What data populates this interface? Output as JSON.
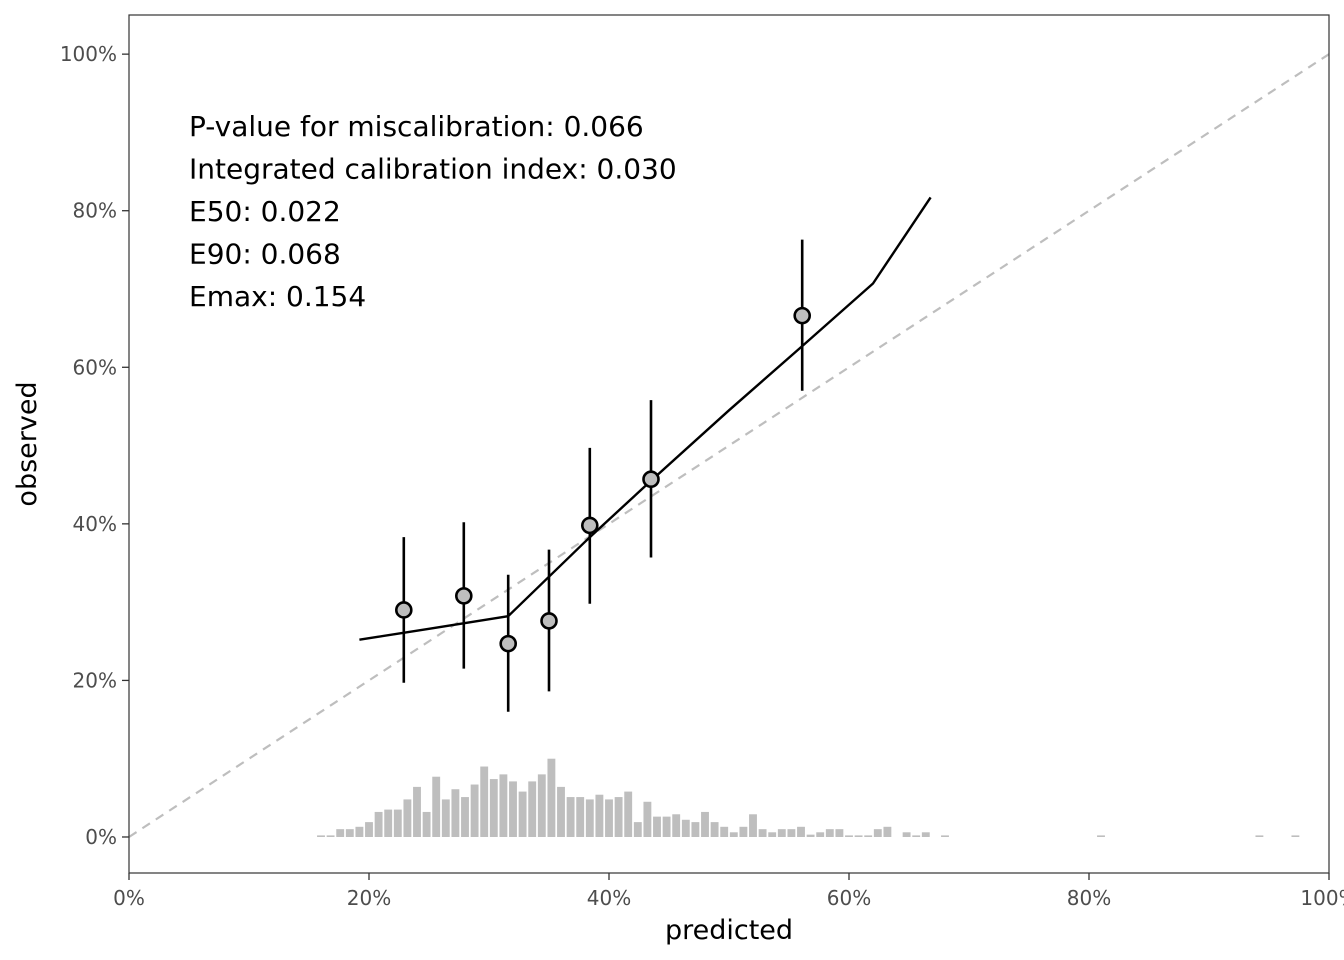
{
  "chart_data": {
    "type": "scatter",
    "title": "",
    "xlabel": "predicted",
    "ylabel": "observed",
    "xlim": [
      0,
      1
    ],
    "ylim": [
      -0.046,
      1.05
    ],
    "x_ticks": [
      0,
      0.2,
      0.4,
      0.6,
      0.8,
      1.0
    ],
    "x_tick_labels": [
      "0%",
      "20%",
      "40%",
      "60%",
      "80%",
      "100%"
    ],
    "y_ticks": [
      0,
      0.2,
      0.4,
      0.6,
      0.8,
      1.0
    ],
    "y_tick_labels": [
      "0%",
      "20%",
      "40%",
      "60%",
      "80%",
      "100%"
    ],
    "grid": false,
    "annotations": [
      "P-value for miscalibration: 0.066",
      "Integrated calibration index: 0.030",
      "E50: 0.022",
      "E90: 0.068",
      "Emax: 0.154"
    ],
    "reference_line": {
      "from": [
        0,
        0
      ],
      "to": [
        1,
        1
      ],
      "style": "dashed",
      "color": "#bebebe"
    },
    "points": [
      {
        "x": 0.229,
        "y": 0.29,
        "lower": 0.197,
        "upper": 0.383
      },
      {
        "x": 0.279,
        "y": 0.308,
        "lower": 0.215,
        "upper": 0.402
      },
      {
        "x": 0.316,
        "y": 0.247,
        "lower": 0.16,
        "upper": 0.335
      },
      {
        "x": 0.35,
        "y": 0.276,
        "lower": 0.186,
        "upper": 0.367
      },
      {
        "x": 0.384,
        "y": 0.398,
        "lower": 0.298,
        "upper": 0.497
      },
      {
        "x": 0.435,
        "y": 0.457,
        "lower": 0.357,
        "upper": 0.558
      },
      {
        "x": 0.561,
        "y": 0.666,
        "lower": 0.57,
        "upper": 0.763
      }
    ],
    "calibration_curve": [
      {
        "x": 0.192,
        "y": 0.252
      },
      {
        "x": 0.25,
        "y": 0.266
      },
      {
        "x": 0.316,
        "y": 0.282
      },
      {
        "x": 0.384,
        "y": 0.383
      },
      {
        "x": 0.435,
        "y": 0.455
      },
      {
        "x": 0.5,
        "y": 0.545
      },
      {
        "x": 0.561,
        "y": 0.627
      },
      {
        "x": 0.62,
        "y": 0.707
      },
      {
        "x": 0.668,
        "y": 0.817
      }
    ],
    "histogram": {
      "bin_width": 0.008,
      "x_start": 0.16,
      "counts": [
        0.002,
        0.002,
        0.01,
        0.01,
        0.013,
        0.019,
        0.032,
        0.035,
        0.035,
        0.048,
        0.064,
        0.032,
        0.077,
        0.048,
        0.061,
        0.051,
        0.067,
        0.09,
        0.074,
        0.08,
        0.071,
        0.058,
        0.071,
        0.08,
        0.1,
        0.064,
        0.051,
        0.051,
        0.048,
        0.054,
        0.048,
        0.051,
        0.058,
        0.019,
        0.045,
        0.026,
        0.026,
        0.029,
        0.022,
        0.019,
        0.032,
        0.019,
        0.013,
        0.006,
        0.013,
        0.029,
        0.01,
        0.006,
        0.01,
        0.01,
        0.013,
        0.003,
        0.006,
        0.01,
        0.01,
        0.002,
        0.002,
        0.002,
        0.01,
        0.013,
        0,
        0.006,
        0.002,
        0.006,
        0,
        0.002
      ],
      "sparse_bins": [
        {
          "x": 0.81,
          "count": 0.002
        },
        {
          "x": 0.942,
          "count": 0.002
        },
        {
          "x": 0.972,
          "count": 0.002
        }
      ],
      "color": "#bebebe"
    }
  }
}
